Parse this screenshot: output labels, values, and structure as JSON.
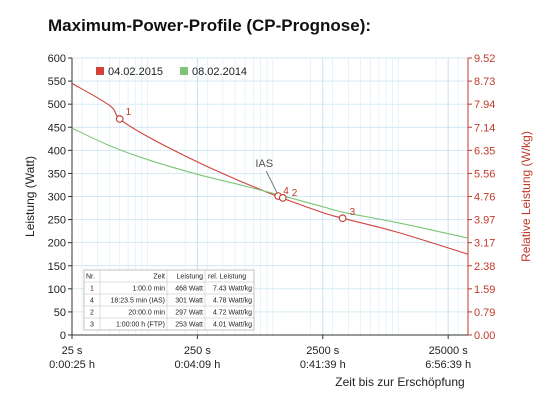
{
  "title": "Maximum-Power-Profile (CP-Prognose):",
  "chart_data": {
    "type": "line",
    "x_scale": "log",
    "xlim": [
      25,
      36000
    ],
    "ylim": [
      0,
      600
    ],
    "y2lim": [
      0.0,
      9.52
    ],
    "ylabel": "Leistung (Watt)",
    "y2label": "Relative Leistung (W/kg)",
    "xlabel": "Zeit bis zur Erschöpfung",
    "y_ticks": [
      0,
      50,
      100,
      150,
      200,
      250,
      300,
      350,
      400,
      450,
      500,
      550,
      600
    ],
    "y2_ticks": [
      "0.00",
      "0.79",
      "1.59",
      "2.38",
      "3.17",
      "3.97",
      "4.76",
      "5.56",
      "6.35",
      "7.14",
      "7.94",
      "8.73",
      "9.52"
    ],
    "x_ticks": [
      {
        "x": 25,
        "label1": "25 s",
        "label2": "0:00:25 h"
      },
      {
        "x": 250,
        "label1": "250 s",
        "label2": "0:04:09 h"
      },
      {
        "x": 2500,
        "label1": "2500 s",
        "label2": "0:41:39 h"
      },
      {
        "x": 25000,
        "label1": "25000 s",
        "label2": "6:56:39 h"
      }
    ],
    "legend_placement": "top-left",
    "series": [
      {
        "name": "04.02.2015",
        "color": "#d0423a",
        "x": [
          25,
          50,
          60,
          100,
          250,
          500,
          1000,
          1120,
          2500,
          3600,
          10000,
          36000
        ],
        "y": [
          545,
          497,
          468,
          430,
          375,
          338,
          304,
          299,
          265,
          253,
          222,
          175
        ]
      },
      {
        "name": "08.02.2014",
        "color": "#7cc576",
        "x": [
          25,
          50,
          100,
          250,
          500,
          1000,
          2500,
          3600,
          10000,
          36000
        ],
        "y": [
          448,
          410,
          380,
          348,
          328,
          307,
          278,
          266,
          243,
          210
        ]
      }
    ],
    "points": [
      {
        "label": "1",
        "x": 60,
        "y": 468
      },
      {
        "label": "4",
        "x": 1103,
        "y": 301
      },
      {
        "label": "2",
        "x": 1200,
        "y": 297
      },
      {
        "label": "3",
        "x": 3600,
        "y": 253
      }
    ],
    "annotation": {
      "text": "IAS",
      "x": 1103,
      "y": 301
    },
    "table": {
      "headers": [
        "Nr.",
        "Zeit",
        "Leistung",
        "rel. Leistung"
      ],
      "rows": [
        [
          "1",
          "1:00.0 min",
          "468 Watt",
          "7.43 Watt/kg"
        ],
        [
          "4",
          "18:23.5 min (IAS)",
          "301 Watt",
          "4.78 Watt/kg"
        ],
        [
          "2",
          "20:00.0 min",
          "297 Watt",
          "4.72 Watt/kg"
        ],
        [
          "3",
          "1:00:00 h (FTP)",
          "253 Watt",
          "4.01 Watt/kg"
        ]
      ]
    }
  }
}
